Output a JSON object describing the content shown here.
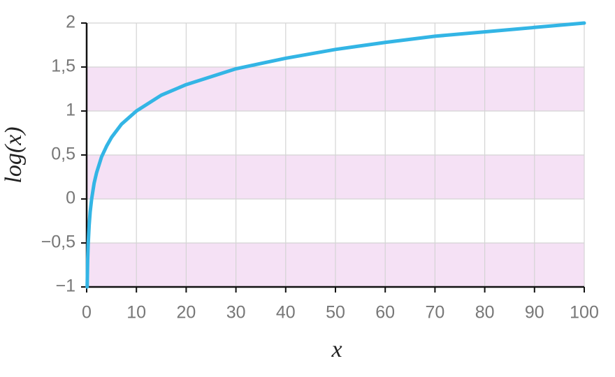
{
  "chart_data": {
    "type": "line",
    "x_label": "x",
    "y_label": "log(x)",
    "x": [
      0.1,
      0.2,
      0.3,
      0.5,
      0.7,
      1,
      1.5,
      2,
      3,
      4,
      5,
      7,
      10,
      15,
      20,
      30,
      40,
      50,
      60,
      70,
      80,
      90,
      100
    ],
    "series": [
      {
        "name": "log(x)",
        "color": "#33b5e5",
        "values": [
          -1,
          -0.7,
          -0.52,
          -0.3,
          -0.15,
          0,
          0.18,
          0.3,
          0.48,
          0.6,
          0.7,
          0.85,
          1,
          1.18,
          1.3,
          1.48,
          1.6,
          1.7,
          1.78,
          1.85,
          1.9,
          1.95,
          2
        ]
      }
    ],
    "xlim": [
      0,
      100
    ],
    "xticks": [
      0,
      10,
      20,
      30,
      40,
      50,
      60,
      70,
      80,
      90,
      100
    ],
    "ylim": [
      -1,
      2
    ],
    "yticks": [
      {
        "value": -1,
        "label": "−1"
      },
      {
        "value": -0.5,
        "label": "−0,5"
      },
      0,
      {
        "value": 0.5,
        "label": "0,5"
      },
      1,
      {
        "value": 1.5,
        "label": "1,5"
      },
      2
    ],
    "bands": [
      [
        -1,
        -0.5
      ],
      [
        0,
        0.5
      ],
      [
        1,
        1.5
      ]
    ],
    "band_color": "#f5e1f5",
    "grid": true
  }
}
